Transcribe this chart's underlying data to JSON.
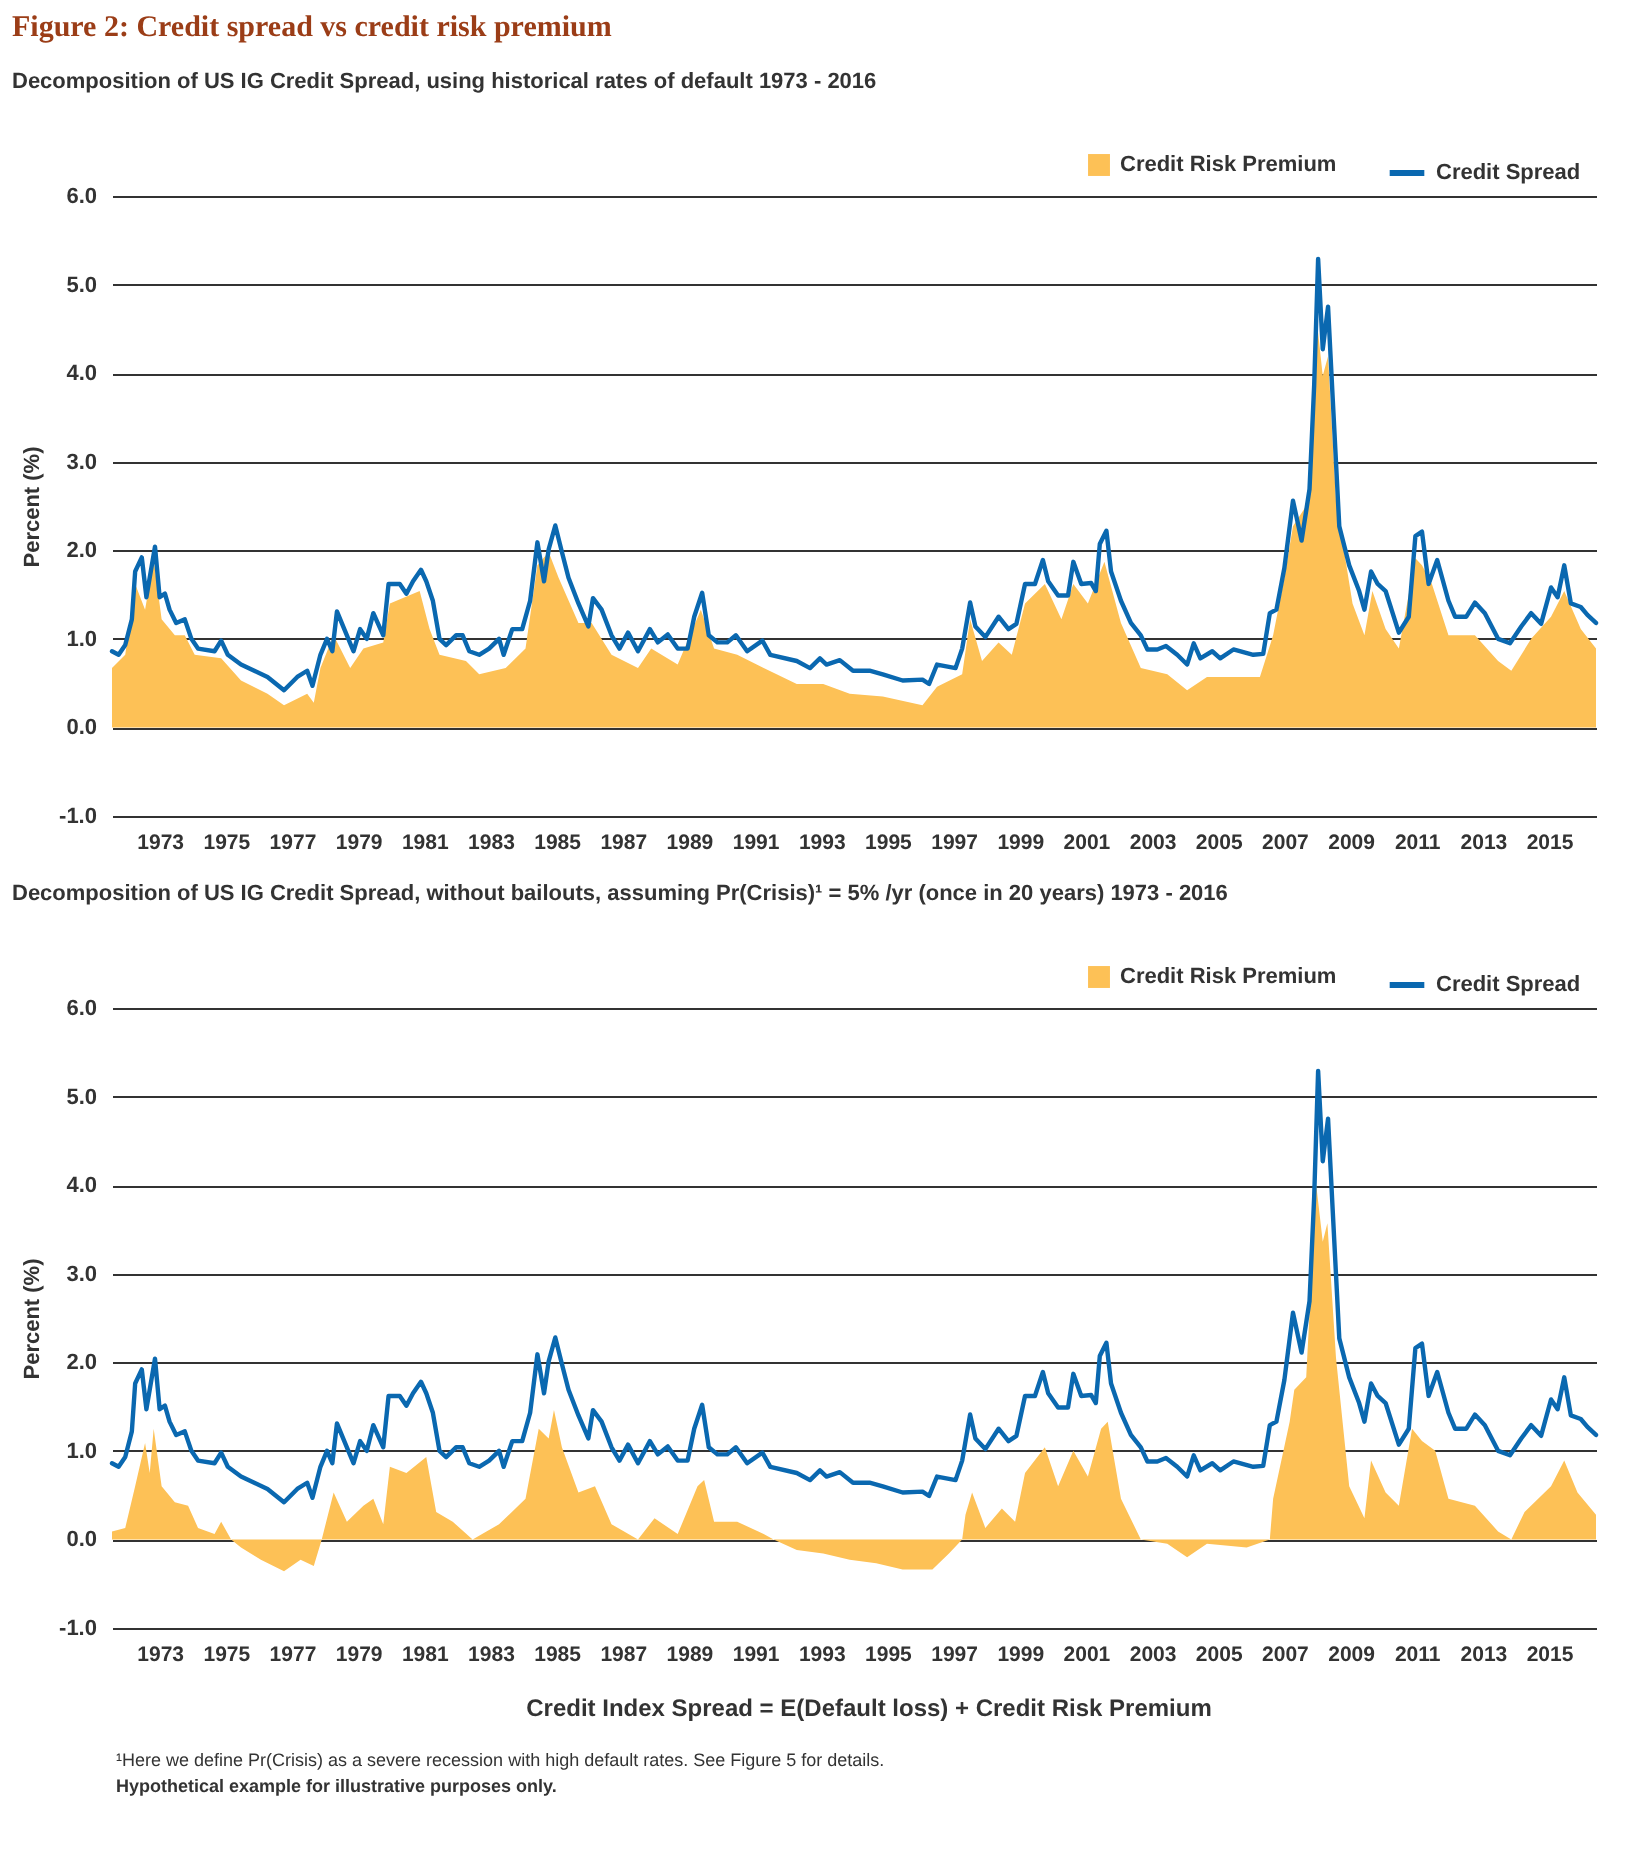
{
  "chart_data": [
    {
      "type": "line",
      "title": "Figure 2: Credit spread vs credit risk premium",
      "subtitle": "Decomposition of US IG Credit Spread, using historical rates of default 1973 - 2016",
      "ylabel": "Percent (%)",
      "xlim": [
        1971.56,
        2016.42
      ],
      "xticks": [
        1973,
        1975,
        1977,
        1979,
        1981,
        1983,
        1985,
        1987,
        1989,
        1991,
        1993,
        1995,
        1997,
        1999,
        2001,
        2003,
        2005,
        2007,
        2009,
        2011,
        2013,
        2015
      ],
      "ylim": [
        -1,
        6
      ],
      "yticks": [
        {
          "value": -1,
          "label": "-1.0"
        },
        {
          "value": 0,
          "label": "0.0"
        },
        {
          "value": 1,
          "label": "1.0"
        },
        {
          "value": 2,
          "label": "2.0"
        },
        {
          "value": 3,
          "label": "3.0"
        },
        {
          "value": 4,
          "label": "4.0"
        },
        {
          "value": 5,
          "label": "5.0"
        },
        {
          "value": 6,
          "label": "6.0"
        }
      ],
      "grid": "y",
      "legend": "top right",
      "series": [
        {
          "name": "Credit Risk Premium",
          "type": "area",
          "color": "#fdc156",
          "x": [
            1971.56,
            1971.96,
            1972.26,
            1972.56,
            1972.82,
            1973.06,
            1973.46,
            1973.76,
            1974.06,
            1974.86,
            1975.46,
            1976.26,
            1976.76,
            1977.46,
            1977.66,
            1977.86,
            1978.26,
            1978.76,
            1979.16,
            1979.76,
            1979.96,
            1980.86,
            1981.16,
            1981.46,
            1982.26,
            1982.66,
            1983.46,
            1984.06,
            1984.42,
            1984.76,
            1985.06,
            1985.66,
            1986.06,
            1986.66,
            1987.46,
            1987.86,
            1988.66,
            1989.36,
            1989.76,
            1990.46,
            1991.26,
            1992.26,
            1993.06,
            1993.86,
            1994.86,
            1996.06,
            1996.5,
            1997.26,
            1997.5,
            1997.86,
            1998.36,
            1998.76,
            1999.16,
            1999.76,
            2000.26,
            2000.62,
            2001.06,
            2001.56,
            2002.06,
            2002.66,
            2003.46,
            2004.06,
            2004.66,
            2006.26,
            2006.66,
            2007.0,
            2007.26,
            2007.76,
            2007.96,
            2008.16,
            2008.32,
            2008.56,
            2009.06,
            2009.42,
            2009.66,
            2010.06,
            2010.46,
            2010.96,
            2011.16,
            2011.46,
            2011.96,
            2012.76,
            2013.46,
            2013.86,
            2014.46,
            2015.06,
            2015.46,
            2015.96,
            2016.42
          ],
          "values": [
            0.67,
            0.82,
            1.62,
            1.33,
            1.9,
            1.22,
            1.04,
            1.04,
            0.82,
            0.78,
            0.53,
            0.38,
            0.25,
            0.38,
            0.28,
            0.67,
            1.04,
            0.67,
            0.89,
            0.96,
            1.4,
            1.54,
            1.11,
            0.82,
            0.75,
            0.6,
            0.67,
            0.89,
            1.83,
            1.98,
            1.69,
            1.18,
            1.18,
            0.82,
            0.67,
            0.89,
            0.71,
            1.33,
            0.89,
            0.82,
            0.67,
            0.49,
            0.49,
            0.38,
            0.35,
            0.25,
            0.46,
            0.6,
            1.22,
            0.75,
            0.96,
            0.82,
            1.4,
            1.62,
            1.22,
            1.62,
            1.4,
            1.87,
            1.18,
            0.67,
            0.6,
            0.42,
            0.57,
            0.57,
            1.04,
            1.69,
            2.27,
            2.56,
            4.66,
            3.97,
            4.19,
            2.56,
            1.4,
            1.04,
            1.54,
            1.11,
            0.89,
            1.91,
            1.83,
            1.62,
            1.04,
            1.04,
            0.75,
            0.64,
            1.0,
            1.25,
            1.54,
            1.11,
            0.89
          ]
        },
        {
          "name": "Credit Spread",
          "type": "line",
          "color": "#0a68b0",
          "x": [
            1971.56,
            1971.76,
            1971.96,
            1972.16,
            1972.26,
            1972.46,
            1972.6,
            1972.86,
            1973.0,
            1973.16,
            1973.3,
            1973.5,
            1973.76,
            1973.96,
            1974.16,
            1974.66,
            1974.86,
            1975.06,
            1975.46,
            1975.86,
            1976.26,
            1976.76,
            1977.16,
            1977.46,
            1977.62,
            1977.86,
            1978.06,
            1978.22,
            1978.36,
            1978.66,
            1978.86,
            1979.06,
            1979.26,
            1979.46,
            1979.76,
            1979.92,
            1980.26,
            1980.46,
            1980.66,
            1980.9,
            1981.06,
            1981.26,
            1981.46,
            1981.66,
            1981.96,
            1982.16,
            1982.36,
            1982.66,
            1982.96,
            1983.26,
            1983.4,
            1983.66,
            1983.96,
            1984.2,
            1984.42,
            1984.62,
            1984.76,
            1984.96,
            1985.16,
            1985.36,
            1985.66,
            1985.96,
            1986.1,
            1986.36,
            1986.66,
            1986.9,
            1987.16,
            1987.46,
            1987.82,
            1988.06,
            1988.36,
            1988.66,
            1988.96,
            1989.16,
            1989.4,
            1989.6,
            1989.86,
            1990.16,
            1990.42,
            1990.76,
            1991.22,
            1991.46,
            1992.26,
            1992.66,
            1992.96,
            1993.16,
            1993.56,
            1993.96,
            1994.46,
            1994.86,
            1995.46,
            1996.06,
            1996.26,
            1996.5,
            1997.06,
            1997.26,
            1997.5,
            1997.66,
            1997.96,
            1998.36,
            1998.66,
            1998.9,
            1999.16,
            1999.46,
            1999.7,
            1999.86,
            2000.16,
            2000.46,
            2000.62,
            2000.86,
            2001.16,
            2001.3,
            2001.42,
            2001.62,
            2001.76,
            2002.06,
            2002.36,
            2002.66,
            2002.86,
            2003.16,
            2003.42,
            2003.76,
            2004.06,
            2004.26,
            2004.46,
            2004.82,
            2005.06,
            2005.46,
            2006.06,
            2006.36,
            2006.56,
            2006.76,
            2007.0,
            2007.26,
            2007.52,
            2007.76,
            2007.9,
            2008.02,
            2008.16,
            2008.32,
            2008.46,
            2008.66,
            2008.96,
            2009.26,
            2009.42,
            2009.62,
            2009.82,
            2010.06,
            2010.46,
            2010.76,
            2010.96,
            2011.16,
            2011.36,
            2011.62,
            2011.96,
            2012.16,
            2012.5,
            2012.76,
            2013.06,
            2013.46,
            2013.82,
            2014.16,
            2014.46,
            2014.76,
            2015.06,
            2015.26,
            2015.46,
            2015.66,
            2015.96,
            2016.16,
            2016.42
          ],
          "values": [
            0.86,
            0.82,
            0.93,
            1.22,
            1.76,
            1.92,
            1.47,
            2.04,
            1.47,
            1.51,
            1.33,
            1.18,
            1.22,
            1.0,
            0.89,
            0.86,
            0.98,
            0.82,
            0.71,
            0.64,
            0.57,
            0.42,
            0.57,
            0.64,
            0.47,
            0.82,
            1.0,
            0.86,
            1.31,
            1.04,
            0.86,
            1.11,
            1.0,
            1.29,
            1.04,
            1.62,
            1.62,
            1.51,
            1.65,
            1.78,
            1.65,
            1.43,
            1.0,
            0.93,
            1.04,
            1.04,
            0.86,
            0.82,
            0.89,
            1.0,
            0.82,
            1.11,
            1.11,
            1.43,
            2.09,
            1.65,
            2.01,
            2.28,
            1.98,
            1.69,
            1.4,
            1.14,
            1.46,
            1.33,
            1.04,
            0.89,
            1.07,
            0.86,
            1.11,
            0.96,
            1.05,
            0.89,
            0.89,
            1.25,
            1.52,
            1.04,
            0.96,
            0.96,
            1.04,
            0.86,
            0.98,
            0.82,
            0.75,
            0.67,
            0.78,
            0.71,
            0.76,
            0.64,
            0.64,
            0.6,
            0.53,
            0.54,
            0.49,
            0.71,
            0.67,
            0.89,
            1.41,
            1.14,
            1.02,
            1.25,
            1.11,
            1.17,
            1.62,
            1.62,
            1.89,
            1.65,
            1.49,
            1.49,
            1.87,
            1.62,
            1.63,
            1.54,
            2.07,
            2.22,
            1.76,
            1.43,
            1.18,
            1.04,
            0.88,
            0.88,
            0.92,
            0.82,
            0.71,
            0.95,
            0.78,
            0.86,
            0.78,
            0.88,
            0.82,
            0.83,
            1.29,
            1.33,
            1.8,
            2.56,
            2.11,
            2.69,
            3.86,
            5.29,
            4.27,
            4.75,
            3.72,
            2.27,
            1.83,
            1.54,
            1.33,
            1.76,
            1.62,
            1.54,
            1.07,
            1.25,
            2.16,
            2.21,
            1.62,
            1.89,
            1.43,
            1.25,
            1.25,
            1.41,
            1.29,
            1.0,
            0.95,
            1.14,
            1.29,
            1.17,
            1.58,
            1.47,
            1.83,
            1.4,
            1.36,
            1.27,
            1.18
          ]
        }
      ]
    },
    {
      "type": "line",
      "subtitle": "Decomposition of US IG Credit Spread, without bailouts, assuming Pr(Crisis)¹ = 5% /yr (once in 20 years) 1973 - 2016",
      "ylabel": "Percent (%)",
      "xlim": [
        1971.56,
        2016.42
      ],
      "xticks": [
        1973,
        1975,
        1977,
        1979,
        1981,
        1983,
        1985,
        1987,
        1989,
        1991,
        1993,
        1995,
        1997,
        1999,
        2001,
        2003,
        2005,
        2007,
        2009,
        2011,
        2013,
        2015
      ],
      "ylim": [
        -1,
        6
      ],
      "yticks": [
        {
          "value": -1,
          "label": "-1.0"
        },
        {
          "value": 0,
          "label": "0.0"
        },
        {
          "value": 1,
          "label": "1.0"
        },
        {
          "value": 2,
          "label": "2.0"
        },
        {
          "value": 3,
          "label": "3.0"
        },
        {
          "value": 4,
          "label": "4.0"
        },
        {
          "value": 5,
          "label": "5.0"
        },
        {
          "value": 6,
          "label": "6.0"
        }
      ],
      "grid": "y",
      "legend": "top right",
      "annotations": [
        "Credit Index Spread = E(Default loss) + Credit Risk Premium",
        "¹Here we define Pr(Crisis) as a severe recession with high default rates. See Figure 5 for details.",
        "Hypothetical example for illustrative purposes only."
      ],
      "series": [
        {
          "name": "Credit Risk Premium",
          "type": "area",
          "color": "#fdc156",
          "x": [
            1971.56,
            1971.96,
            1972.26,
            1972.56,
            1972.7,
            1972.82,
            1973.06,
            1973.46,
            1973.86,
            1974.16,
            1974.66,
            1974.86,
            1975.16,
            1975.46,
            1976.06,
            1976.76,
            1977.26,
            1977.66,
            1977.9,
            1978.26,
            1978.66,
            1979.16,
            1979.46,
            1979.76,
            1979.96,
            1980.46,
            1981.06,
            1981.36,
            1981.86,
            1982.46,
            1983.26,
            1984.06,
            1984.46,
            1984.76,
            1984.92,
            1985.16,
            1985.66,
            1986.16,
            1986.66,
            1987.46,
            1987.96,
            1988.66,
            1989.26,
            1989.46,
            1989.76,
            1990.46,
            1991.26,
            1991.56,
            1992.26,
            1993.06,
            1993.86,
            1994.66,
            1995.46,
            1996.36,
            1996.86,
            1997.26,
            1997.36,
            1997.56,
            1997.96,
            1998.46,
            1998.86,
            1999.16,
            1999.76,
            2000.16,
            2000.62,
            2001.06,
            2001.46,
            2001.66,
            2002.06,
            2002.66,
            2003.46,
            2004.06,
            2004.66,
            2005.86,
            2006.56,
            2006.66,
            2007.16,
            2007.3,
            2007.66,
            2007.96,
            2008.16,
            2008.3,
            2008.56,
            2008.96,
            2009.42,
            2009.62,
            2010.06,
            2010.46,
            2010.86,
            2011.16,
            2011.56,
            2011.96,
            2012.76,
            2013.46,
            2013.86,
            2014.26,
            2015.06,
            2015.46,
            2015.86,
            2016.42
          ],
          "values": [
            0.09,
            0.13,
            0.6,
            1.09,
            0.75,
            1.25,
            0.6,
            0.42,
            0.38,
            0.13,
            0.06,
            0.2,
            0,
            -0.09,
            -0.23,
            -0.36,
            -0.23,
            -0.3,
            0,
            0.53,
            0.2,
            0.38,
            0.46,
            0.17,
            0.82,
            0.75,
            0.93,
            0.31,
            0.2,
            0,
            0.17,
            0.46,
            1.25,
            1.14,
            1.46,
            1.04,
            0.53,
            0.6,
            0.17,
            0,
            0.24,
            0.06,
            0.6,
            0.67,
            0.2,
            0.2,
            0.06,
            0,
            -0.12,
            -0.16,
            -0.23,
            -0.27,
            -0.34,
            -0.34,
            -0.16,
            0,
            0.28,
            0.53,
            0.13,
            0.35,
            0.2,
            0.75,
            1.04,
            0.6,
            1.0,
            0.71,
            1.25,
            1.33,
            0.46,
            0,
            -0.05,
            -0.2,
            -0.05,
            -0.09,
            0,
            0.46,
            1.33,
            1.69,
            1.83,
            4.01,
            3.36,
            3.57,
            2.05,
            0.6,
            0.24,
            0.89,
            0.53,
            0.38,
            1.25,
            1.11,
            1.0,
            0.46,
            0.38,
            0.09,
            0,
            0.31,
            0.6,
            0.89,
            0.53,
            0.28
          ]
        },
        {
          "name": "Credit Spread",
          "type": "line",
          "color": "#0a68b0",
          "x": [
            1971.56,
            1971.76,
            1971.96,
            1972.16,
            1972.26,
            1972.46,
            1972.6,
            1972.86,
            1973.0,
            1973.16,
            1973.3,
            1973.5,
            1973.76,
            1973.96,
            1974.16,
            1974.66,
            1974.86,
            1975.06,
            1975.46,
            1975.86,
            1976.26,
            1976.76,
            1977.16,
            1977.46,
            1977.62,
            1977.86,
            1978.06,
            1978.22,
            1978.36,
            1978.66,
            1978.86,
            1979.06,
            1979.26,
            1979.46,
            1979.76,
            1979.92,
            1980.26,
            1980.46,
            1980.66,
            1980.9,
            1981.06,
            1981.26,
            1981.46,
            1981.66,
            1981.96,
            1982.16,
            1982.36,
            1982.66,
            1982.96,
            1983.26,
            1983.4,
            1983.66,
            1983.96,
            1984.2,
            1984.42,
            1984.62,
            1984.76,
            1984.96,
            1985.16,
            1985.36,
            1985.66,
            1985.96,
            1986.1,
            1986.36,
            1986.66,
            1986.9,
            1987.16,
            1987.46,
            1987.82,
            1988.06,
            1988.36,
            1988.66,
            1988.96,
            1989.16,
            1989.4,
            1989.6,
            1989.86,
            1990.16,
            1990.42,
            1990.76,
            1991.22,
            1991.46,
            1992.26,
            1992.66,
            1992.96,
            1993.16,
            1993.56,
            1993.96,
            1994.46,
            1994.86,
            1995.46,
            1996.06,
            1996.26,
            1996.5,
            1997.06,
            1997.26,
            1997.5,
            1997.66,
            1997.96,
            1998.36,
            1998.66,
            1998.9,
            1999.16,
            1999.46,
            1999.7,
            1999.86,
            2000.16,
            2000.46,
            2000.62,
            2000.86,
            2001.16,
            2001.3,
            2001.42,
            2001.62,
            2001.76,
            2002.06,
            2002.36,
            2002.66,
            2002.86,
            2003.16,
            2003.42,
            2003.76,
            2004.06,
            2004.26,
            2004.46,
            2004.82,
            2005.06,
            2005.46,
            2006.06,
            2006.36,
            2006.56,
            2006.76,
            2007.0,
            2007.26,
            2007.52,
            2007.76,
            2007.9,
            2008.02,
            2008.16,
            2008.32,
            2008.46,
            2008.66,
            2008.96,
            2009.26,
            2009.42,
            2009.62,
            2009.82,
            2010.06,
            2010.46,
            2010.76,
            2010.96,
            2011.16,
            2011.36,
            2011.62,
            2011.96,
            2012.16,
            2012.5,
            2012.76,
            2013.06,
            2013.46,
            2013.82,
            2014.16,
            2014.46,
            2014.76,
            2015.06,
            2015.26,
            2015.46,
            2015.66,
            2015.96,
            2016.16,
            2016.42
          ],
          "values": [
            0.86,
            0.82,
            0.93,
            1.22,
            1.76,
            1.92,
            1.47,
            2.04,
            1.47,
            1.51,
            1.33,
            1.18,
            1.22,
            1.0,
            0.89,
            0.86,
            0.98,
            0.82,
            0.71,
            0.64,
            0.57,
            0.42,
            0.57,
            0.64,
            0.47,
            0.82,
            1.0,
            0.86,
            1.31,
            1.04,
            0.86,
            1.11,
            1.0,
            1.29,
            1.04,
            1.62,
            1.62,
            1.51,
            1.65,
            1.78,
            1.65,
            1.43,
            1.0,
            0.93,
            1.04,
            1.04,
            0.86,
            0.82,
            0.89,
            1.0,
            0.82,
            1.11,
            1.11,
            1.43,
            2.09,
            1.65,
            2.01,
            2.28,
            1.98,
            1.69,
            1.4,
            1.14,
            1.46,
            1.33,
            1.04,
            0.89,
            1.07,
            0.86,
            1.11,
            0.96,
            1.05,
            0.89,
            0.89,
            1.25,
            1.52,
            1.04,
            0.96,
            0.96,
            1.04,
            0.86,
            0.98,
            0.82,
            0.75,
            0.67,
            0.78,
            0.71,
            0.76,
            0.64,
            0.64,
            0.6,
            0.53,
            0.54,
            0.49,
            0.71,
            0.67,
            0.89,
            1.41,
            1.14,
            1.02,
            1.25,
            1.11,
            1.17,
            1.62,
            1.62,
            1.89,
            1.65,
            1.49,
            1.49,
            1.87,
            1.62,
            1.63,
            1.54,
            2.07,
            2.22,
            1.76,
            1.43,
            1.18,
            1.04,
            0.88,
            0.88,
            0.92,
            0.82,
            0.71,
            0.95,
            0.78,
            0.86,
            0.78,
            0.88,
            0.82,
            0.83,
            1.29,
            1.33,
            1.8,
            2.56,
            2.11,
            2.69,
            3.86,
            5.29,
            4.27,
            4.75,
            3.72,
            2.27,
            1.83,
            1.54,
            1.33,
            1.76,
            1.62,
            1.54,
            1.07,
            1.25,
            2.16,
            2.21,
            1.62,
            1.89,
            1.43,
            1.25,
            1.25,
            1.41,
            1.29,
            1.0,
            0.95,
            1.14,
            1.29,
            1.17,
            1.58,
            1.47,
            1.83,
            1.4,
            1.36,
            1.27,
            1.18
          ]
        }
      ]
    }
  ]
}
